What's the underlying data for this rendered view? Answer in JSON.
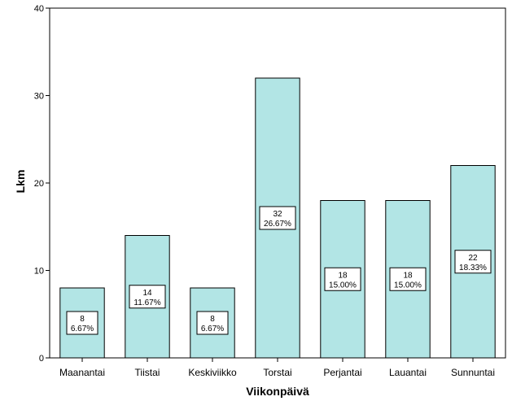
{
  "chart_data": {
    "type": "bar",
    "title": "",
    "xlabel": "Viikonpäivä",
    "ylabel": "Lkm",
    "ylim": [
      0,
      40
    ],
    "yticks": [
      0,
      10,
      20,
      30,
      40
    ],
    "grid": false,
    "categories": [
      "Maanantai",
      "Tiistai",
      "Keskiviikko",
      "Torstai",
      "Perjantai",
      "Lauantai",
      "Sunnuntai"
    ],
    "values": [
      8,
      14,
      8,
      32,
      18,
      18,
      22
    ],
    "percent_labels": [
      "6.67%",
      "11.67%",
      "6.67%",
      "26.67%",
      "15.00%",
      "15.00%",
      "18.33%"
    ],
    "bar_color": "#b2e5e5",
    "bar_edge_color": "#000000"
  }
}
